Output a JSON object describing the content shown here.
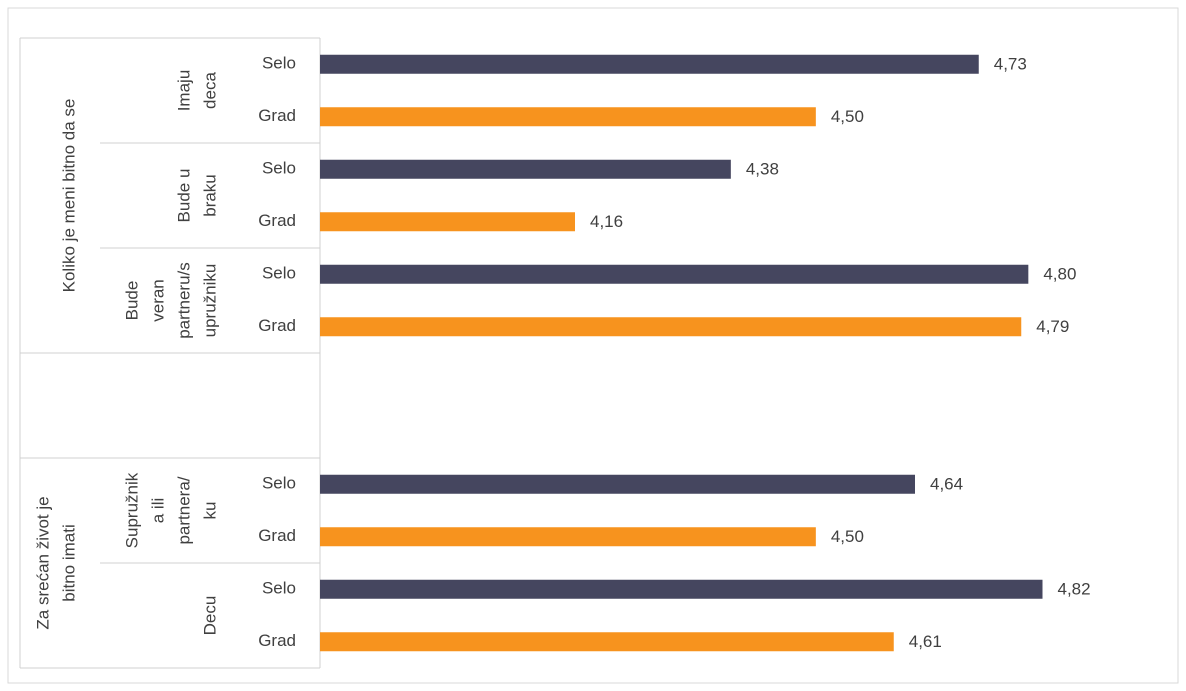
{
  "chart_data": {
    "type": "bar",
    "orientation": "horizontal",
    "xlim": [
      3.8,
      5.0
    ],
    "colors": {
      "Selo": "#45465f",
      "Grad": "#f7931e"
    },
    "groups": [
      {
        "label_lines": [
          "Koliko je meni bitno da se"
        ],
        "subgroups": [
          {
            "label_lines": [
              "Imaju",
              "deca"
            ],
            "categories": [
              "Selo",
              "Grad"
            ],
            "values": [
              4.73,
              4.5
            ],
            "value_labels": [
              "4,73",
              "4,50"
            ]
          },
          {
            "label_lines": [
              "Bude u",
              "braku"
            ],
            "categories": [
              "Selo",
              "Grad"
            ],
            "values": [
              4.38,
              4.16
            ],
            "value_labels": [
              "4,38",
              "4,16"
            ]
          },
          {
            "label_lines": [
              "Bude",
              "veran",
              "partneru/s",
              "upružniku"
            ],
            "categories": [
              "Selo",
              "Grad"
            ],
            "values": [
              4.8,
              4.79
            ],
            "value_labels": [
              "4,80",
              "4,79"
            ]
          }
        ]
      },
      {
        "subgroups": [
          {
            "categories": [
              null,
              null
            ],
            "values": [
              null,
              null
            ],
            "value_labels": [
              null,
              null
            ]
          }
        ]
      },
      {
        "label_lines": [
          "Za srećan život je",
          "bitno imati"
        ],
        "subgroups": [
          {
            "label_lines": [
              "Supružnik",
              "a ili",
              "partnera/",
              "ku"
            ],
            "categories": [
              "Selo",
              "Grad"
            ],
            "values": [
              4.64,
              4.5
            ],
            "value_labels": [
              "4,64",
              "4,50"
            ]
          },
          {
            "label_lines": [
              "Decu"
            ],
            "categories": [
              "Selo",
              "Grad"
            ],
            "values": [
              4.82,
              4.61
            ],
            "value_labels": [
              "4,82",
              "4,61"
            ]
          }
        ]
      }
    ]
  }
}
